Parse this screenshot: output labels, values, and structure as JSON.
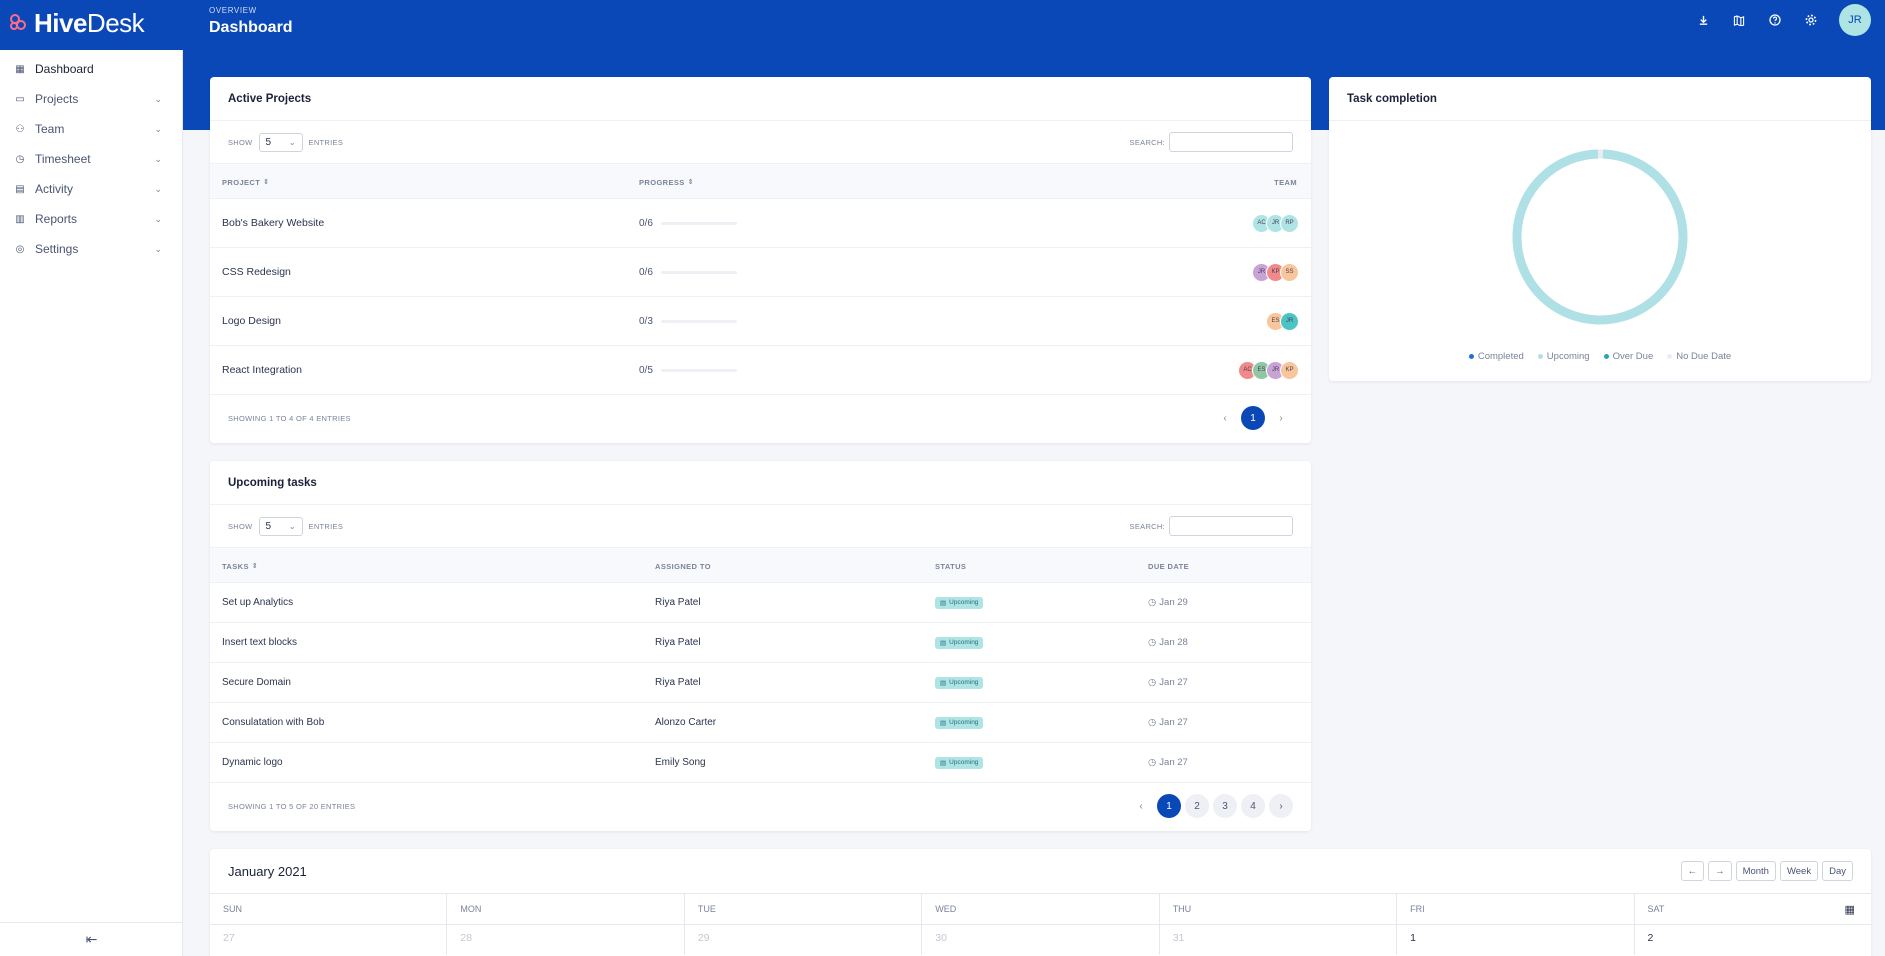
{
  "brand": {
    "name_bold": "Hive",
    "name_light": "Desk"
  },
  "header": {
    "eyebrow": "OVERVIEW",
    "title": "Dashboard",
    "actions": [
      "download-icon",
      "map-icon",
      "help-icon",
      "gear-icon"
    ],
    "user_initials": "JR"
  },
  "sidebar": {
    "items": [
      {
        "label": "Dashboard",
        "icon": "dashboard-icon",
        "expandable": false
      },
      {
        "label": "Projects",
        "icon": "folder-icon",
        "expandable": true
      },
      {
        "label": "Team",
        "icon": "team-icon",
        "expandable": true
      },
      {
        "label": "Timesheet",
        "icon": "timesheet-icon",
        "expandable": true
      },
      {
        "label": "Activity",
        "icon": "activity-icon",
        "expandable": true
      },
      {
        "label": "Reports",
        "icon": "reports-icon",
        "expandable": true
      },
      {
        "label": "Settings",
        "icon": "settings-icon",
        "expandable": true
      }
    ]
  },
  "active_projects": {
    "title": "Active Projects",
    "show_label": "SHOW",
    "entries_value": "5",
    "entries_label": "ENTRIES",
    "search_label": "SEARCH:",
    "columns": {
      "project": "PROJECT",
      "progress": "PROGRESS",
      "team": "TEAM"
    },
    "rows": [
      {
        "name": "Bob's Bakery Website",
        "progress": "0/6",
        "team": [
          {
            "i": "AC",
            "c": "#aee4e4"
          },
          {
            "i": "JR",
            "c": "#aee4e4"
          },
          {
            "i": "RP",
            "c": "#aee4e4"
          }
        ]
      },
      {
        "name": "CSS Redesign",
        "progress": "0/6",
        "team": [
          {
            "i": "JR",
            "c": "#c9a3d6"
          },
          {
            "i": "KP",
            "c": "#f08a8a"
          },
          {
            "i": "SS",
            "c": "#f8c69a"
          }
        ]
      },
      {
        "name": "Logo Design",
        "progress": "0/3",
        "team": [
          {
            "i": "ES",
            "c": "#f8c69a"
          },
          {
            "i": "JR",
            "c": "#4cc4c4"
          }
        ]
      },
      {
        "name": "React Integration",
        "progress": "0/5",
        "team": [
          {
            "i": "AC",
            "c": "#f08a8a"
          },
          {
            "i": "ES",
            "c": "#8fc7a2"
          },
          {
            "i": "JR",
            "c": "#c9a3d6"
          },
          {
            "i": "KP",
            "c": "#f8c69a"
          }
        ]
      }
    ],
    "footer": "SHOWING 1 TO 4 OF 4 ENTRIES",
    "pages": [
      "1"
    ]
  },
  "upcoming_tasks": {
    "title": "Upcoming tasks",
    "show_label": "SHOW",
    "entries_value": "5",
    "entries_label": "ENTRIES",
    "search_label": "SEARCH:",
    "columns": {
      "tasks": "TASKS",
      "assigned": "ASSIGNED TO",
      "status": "STATUS",
      "due": "DUE DATE"
    },
    "rows": [
      {
        "task": "Set up Analytics",
        "assigned": "Riya Patel",
        "status": "Upcoming",
        "due": "Jan 29"
      },
      {
        "task": "Insert text blocks",
        "assigned": "Riya Patel",
        "status": "Upcoming",
        "due": "Jan 28"
      },
      {
        "task": "Secure Domain",
        "assigned": "Riya Patel",
        "status": "Upcoming",
        "due": "Jan 27"
      },
      {
        "task": "Consulatation with Bob",
        "assigned": "Alonzo Carter",
        "status": "Upcoming",
        "due": "Jan 27"
      },
      {
        "task": "Dynamic logo",
        "assigned": "Emily Song",
        "status": "Upcoming",
        "due": "Jan 27"
      }
    ],
    "footer": "SHOWING 1 TO 5 OF 20 ENTRIES",
    "pages": [
      "1",
      "2",
      "3",
      "4"
    ]
  },
  "task_completion": {
    "title": "Task completion",
    "legend": [
      {
        "label": "Completed",
        "color": "#1e6fd9"
      },
      {
        "label": "Upcoming",
        "color": "#aee0e6"
      },
      {
        "label": "Over Due",
        "color": "#2aa3b8"
      },
      {
        "label": "No Due Date",
        "color": "#e9edf2"
      }
    ],
    "upcoming_fraction": 0.99
  },
  "calendar": {
    "title": "January 2021",
    "buttons": {
      "prev": "←",
      "next": "→",
      "month": "Month",
      "week": "Week",
      "day": "Day"
    },
    "weekdays": [
      "SUN",
      "MON",
      "TUE",
      "WED",
      "THU",
      "FRI",
      "SAT"
    ],
    "dates": [
      {
        "d": "27",
        "muted": true
      },
      {
        "d": "28",
        "muted": true
      },
      {
        "d": "29",
        "muted": true
      },
      {
        "d": "30",
        "muted": true
      },
      {
        "d": "31",
        "muted": true
      },
      {
        "d": "1",
        "muted": false
      },
      {
        "d": "2",
        "muted": false
      }
    ]
  }
}
